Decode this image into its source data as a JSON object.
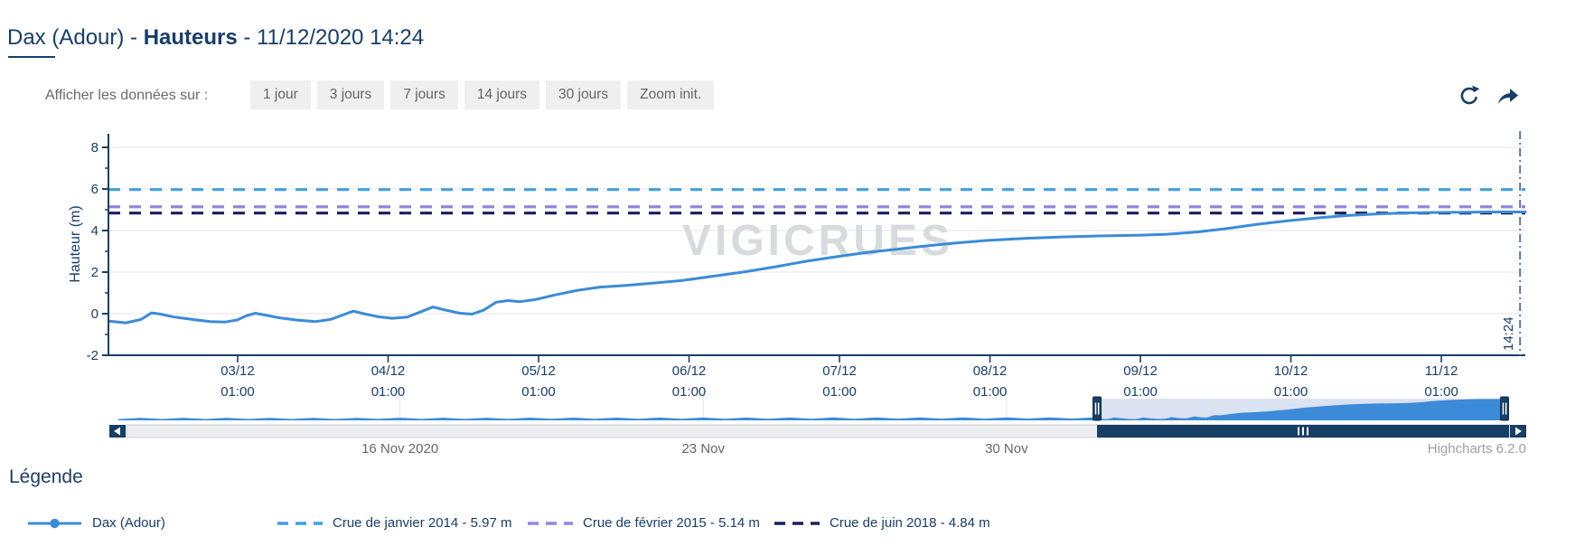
{
  "header": {
    "station": "Dax (Adour)",
    "separator": " - ",
    "metric": "Hauteurs",
    "datetime": "11/12/2020 14:24"
  },
  "toolbar": {
    "label": "Afficher les données sur :",
    "buttons": [
      "1 jour",
      "3 jours",
      "7 jours",
      "14 jours",
      "30 jours",
      "Zoom init."
    ],
    "icons": [
      "refresh-icon",
      "share-icon"
    ]
  },
  "legend": {
    "heading": "Légende"
  },
  "colors": {
    "navy_text": "#173e6b",
    "series_blue": "#3b8bd8",
    "crue_2014": "#3fa0e3",
    "crue_2015": "#8e88dd",
    "crue_2018": "#1a1d62",
    "gridline": "#e6e6e6",
    "now_line": "#5c7a99",
    "watermark": "#d8dbde",
    "nav_mask": "#dbe2f1",
    "scrollbar_track": "#edeff1",
    "scrollbar_border": "#c9ced4",
    "nav_ui_navy": "#173e66",
    "muted_label": "#666666",
    "credits_gray": "#9aa0a5"
  },
  "chart_data": {
    "type": "line",
    "title": "",
    "watermark": "VIGICRUES",
    "credits": "Highcharts 6.2.0",
    "y_axis": {
      "label": "Hauteur (m)",
      "min": -2,
      "max": 8.65,
      "major_ticks": [
        -2,
        0,
        2,
        4,
        6,
        8
      ],
      "minor_ticks": [
        -1,
        1,
        3,
        5,
        7
      ],
      "gridlines": [
        0,
        2,
        4,
        6,
        8
      ]
    },
    "x_axis": {
      "start_day": 2.1833,
      "end_day": 11.6,
      "ticks": [
        {
          "date": "03/12",
          "time": "01:00",
          "day": 3.042
        },
        {
          "date": "04/12",
          "time": "01:00",
          "day": 4.042
        },
        {
          "date": "05/12",
          "time": "01:00",
          "day": 5.042
        },
        {
          "date": "06/12",
          "time": "01:00",
          "day": 6.042
        },
        {
          "date": "07/12",
          "time": "01:00",
          "day": 7.042
        },
        {
          "date": "08/12",
          "time": "01:00",
          "day": 8.042
        },
        {
          "date": "09/12",
          "time": "01:00",
          "day": 9.042
        },
        {
          "date": "10/12",
          "time": "01:00",
          "day": 10.042
        },
        {
          "date": "11/12",
          "time": "01:00",
          "day": 11.042
        }
      ]
    },
    "now_line": {
      "label": "14:24",
      "day": 11.565
    },
    "plot_lines": [
      {
        "name": "Crue de janvier 2014 - 5.97 m",
        "value": 5.97,
        "color": "#3fa0e3"
      },
      {
        "name": "Crue de février 2015 - 5.14 m",
        "value": 5.14,
        "color": "#8e88dd"
      },
      {
        "name": "Crue de juin 2018 - 4.84 m",
        "value": 4.84,
        "color": "#1a1d62"
      }
    ],
    "series": {
      "name": "Dax (Adour)",
      "color": "#3b8bd8",
      "points": [
        [
          2.19,
          -0.36
        ],
        [
          2.3,
          -0.44
        ],
        [
          2.4,
          -0.28
        ],
        [
          2.47,
          0.04
        ],
        [
          2.53,
          -0.02
        ],
        [
          2.62,
          -0.16
        ],
        [
          2.74,
          -0.28
        ],
        [
          2.86,
          -0.38
        ],
        [
          2.96,
          -0.4
        ],
        [
          3.04,
          -0.3
        ],
        [
          3.1,
          -0.1
        ],
        [
          3.16,
          0.02
        ],
        [
          3.22,
          -0.06
        ],
        [
          3.32,
          -0.2
        ],
        [
          3.44,
          -0.31
        ],
        [
          3.56,
          -0.38
        ],
        [
          3.66,
          -0.28
        ],
        [
          3.75,
          -0.04
        ],
        [
          3.81,
          0.12
        ],
        [
          3.88,
          0.0
        ],
        [
          3.97,
          -0.14
        ],
        [
          4.07,
          -0.22
        ],
        [
          4.17,
          -0.16
        ],
        [
          4.27,
          0.12
        ],
        [
          4.34,
          0.32
        ],
        [
          4.42,
          0.18
        ],
        [
          4.52,
          0.02
        ],
        [
          4.6,
          -0.02
        ],
        [
          4.68,
          0.18
        ],
        [
          4.76,
          0.55
        ],
        [
          4.84,
          0.63
        ],
        [
          4.92,
          0.58
        ],
        [
          5.02,
          0.68
        ],
        [
          5.15,
          0.9
        ],
        [
          5.3,
          1.12
        ],
        [
          5.45,
          1.28
        ],
        [
          5.62,
          1.36
        ],
        [
          5.8,
          1.47
        ],
        [
          6.0,
          1.6
        ],
        [
          6.2,
          1.8
        ],
        [
          6.42,
          2.02
        ],
        [
          6.62,
          2.26
        ],
        [
          6.82,
          2.52
        ],
        [
          7.02,
          2.74
        ],
        [
          7.22,
          2.94
        ],
        [
          7.42,
          3.1
        ],
        [
          7.62,
          3.26
        ],
        [
          7.82,
          3.4
        ],
        [
          8.02,
          3.52
        ],
        [
          8.27,
          3.62
        ],
        [
          8.52,
          3.69
        ],
        [
          8.77,
          3.74
        ],
        [
          9.02,
          3.77
        ],
        [
          9.22,
          3.82
        ],
        [
          9.42,
          3.93
        ],
        [
          9.62,
          4.1
        ],
        [
          9.82,
          4.3
        ],
        [
          10.02,
          4.47
        ],
        [
          10.22,
          4.61
        ],
        [
          10.42,
          4.72
        ],
        [
          10.62,
          4.8
        ],
        [
          10.82,
          4.85
        ],
        [
          11.02,
          4.87
        ],
        [
          11.22,
          4.88
        ],
        [
          11.42,
          4.89
        ],
        [
          11.6,
          4.89
        ]
      ]
    },
    "navigator": {
      "range_days": 32.1,
      "main_offset_days": 20.5,
      "selected_start_t": 22.59,
      "labels": [
        {
          "text": "16 Nov 2020",
          "t": 6.5
        },
        {
          "text": "23 Nov",
          "t": 13.5
        },
        {
          "text": "30 Nov",
          "t": 20.5
        }
      ],
      "wave_points": [
        [
          0,
          -0.4
        ],
        [
          0.5,
          -0.1
        ],
        [
          1,
          -0.39
        ],
        [
          1.5,
          -0.09
        ],
        [
          2,
          -0.39
        ],
        [
          2.5,
          -0.08
        ],
        [
          3,
          -0.38
        ],
        [
          3.5,
          -0.07
        ],
        [
          4,
          -0.38
        ],
        [
          4.5,
          -0.07
        ],
        [
          5,
          -0.37
        ],
        [
          5.5,
          -0.06
        ],
        [
          6,
          -0.36
        ],
        [
          6.5,
          -0.05
        ],
        [
          7,
          -0.36
        ],
        [
          7.5,
          -0.05
        ],
        [
          8,
          -0.35
        ],
        [
          8.5,
          -0.04
        ],
        [
          9,
          -0.35
        ],
        [
          9.5,
          -0.03
        ],
        [
          10,
          -0.34
        ],
        [
          10.5,
          -0.02
        ],
        [
          11,
          -0.33
        ],
        [
          11.5,
          -0.02
        ],
        [
          12,
          -0.33
        ],
        [
          12.5,
          -0.01
        ],
        [
          13,
          -0.32
        ],
        [
          13.5,
          0.0
        ],
        [
          14,
          -0.31
        ],
        [
          14.5,
          0.0
        ],
        [
          15,
          -0.31
        ],
        [
          15.5,
          0.01
        ],
        [
          16,
          -0.3
        ],
        [
          16.5,
          0.02
        ],
        [
          17,
          -0.3
        ],
        [
          17.5,
          0.02
        ],
        [
          18,
          -0.29
        ],
        [
          18.5,
          0.03
        ],
        [
          19,
          -0.28
        ],
        [
          19.5,
          0.04
        ],
        [
          20,
          -0.28
        ],
        [
          20.5,
          0.04
        ],
        [
          21,
          -0.27
        ],
        [
          21.5,
          0.05
        ],
        [
          22,
          -0.27
        ],
        [
          22.5,
          0.05
        ]
      ]
    }
  }
}
